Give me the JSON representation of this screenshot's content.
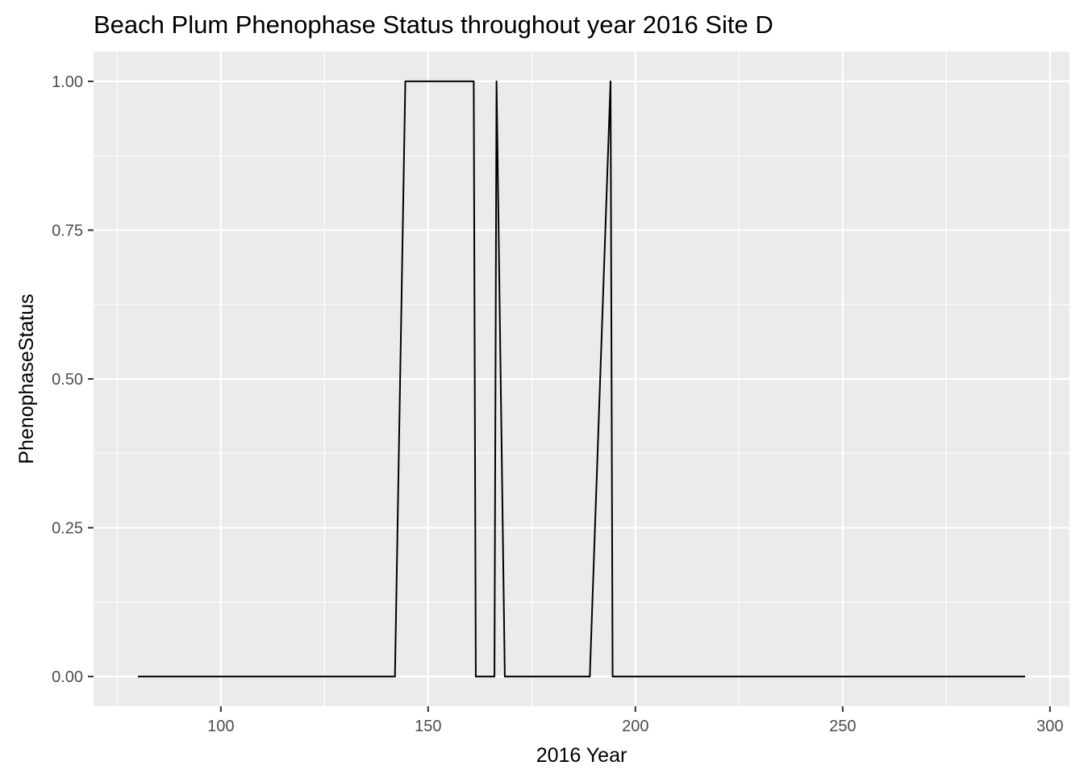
{
  "chart_data": {
    "type": "line",
    "title": "Beach Plum Phenophase Status throughout year 2016 Site D",
    "xlabel": "2016 Year",
    "ylabel": "PhenophaseStatus",
    "xlim": [
      69.3,
      304.7
    ],
    "ylim": [
      -0.05,
      1.05
    ],
    "x_ticks": [
      100,
      150,
      200,
      250,
      300
    ],
    "x_tick_labels": [
      "100",
      "150",
      "200",
      "250",
      "300"
    ],
    "y_ticks": [
      0,
      0.25,
      0.5,
      0.75,
      1
    ],
    "y_tick_labels": [
      "0.00",
      "0.25",
      "0.50",
      "0.75",
      "1.00"
    ],
    "grid": true,
    "background": "#ebebeb",
    "grid_color": "#ffffff",
    "line_color": "#000000",
    "series": [
      {
        "x": [
          80,
          142,
          144.5,
          161,
          161.5,
          166,
          166.5,
          168.5,
          189,
          194,
          194.5,
          294
        ],
        "y": [
          0,
          0,
          1,
          1,
          0,
          0,
          1,
          0,
          0,
          1,
          0,
          0
        ]
      }
    ]
  }
}
